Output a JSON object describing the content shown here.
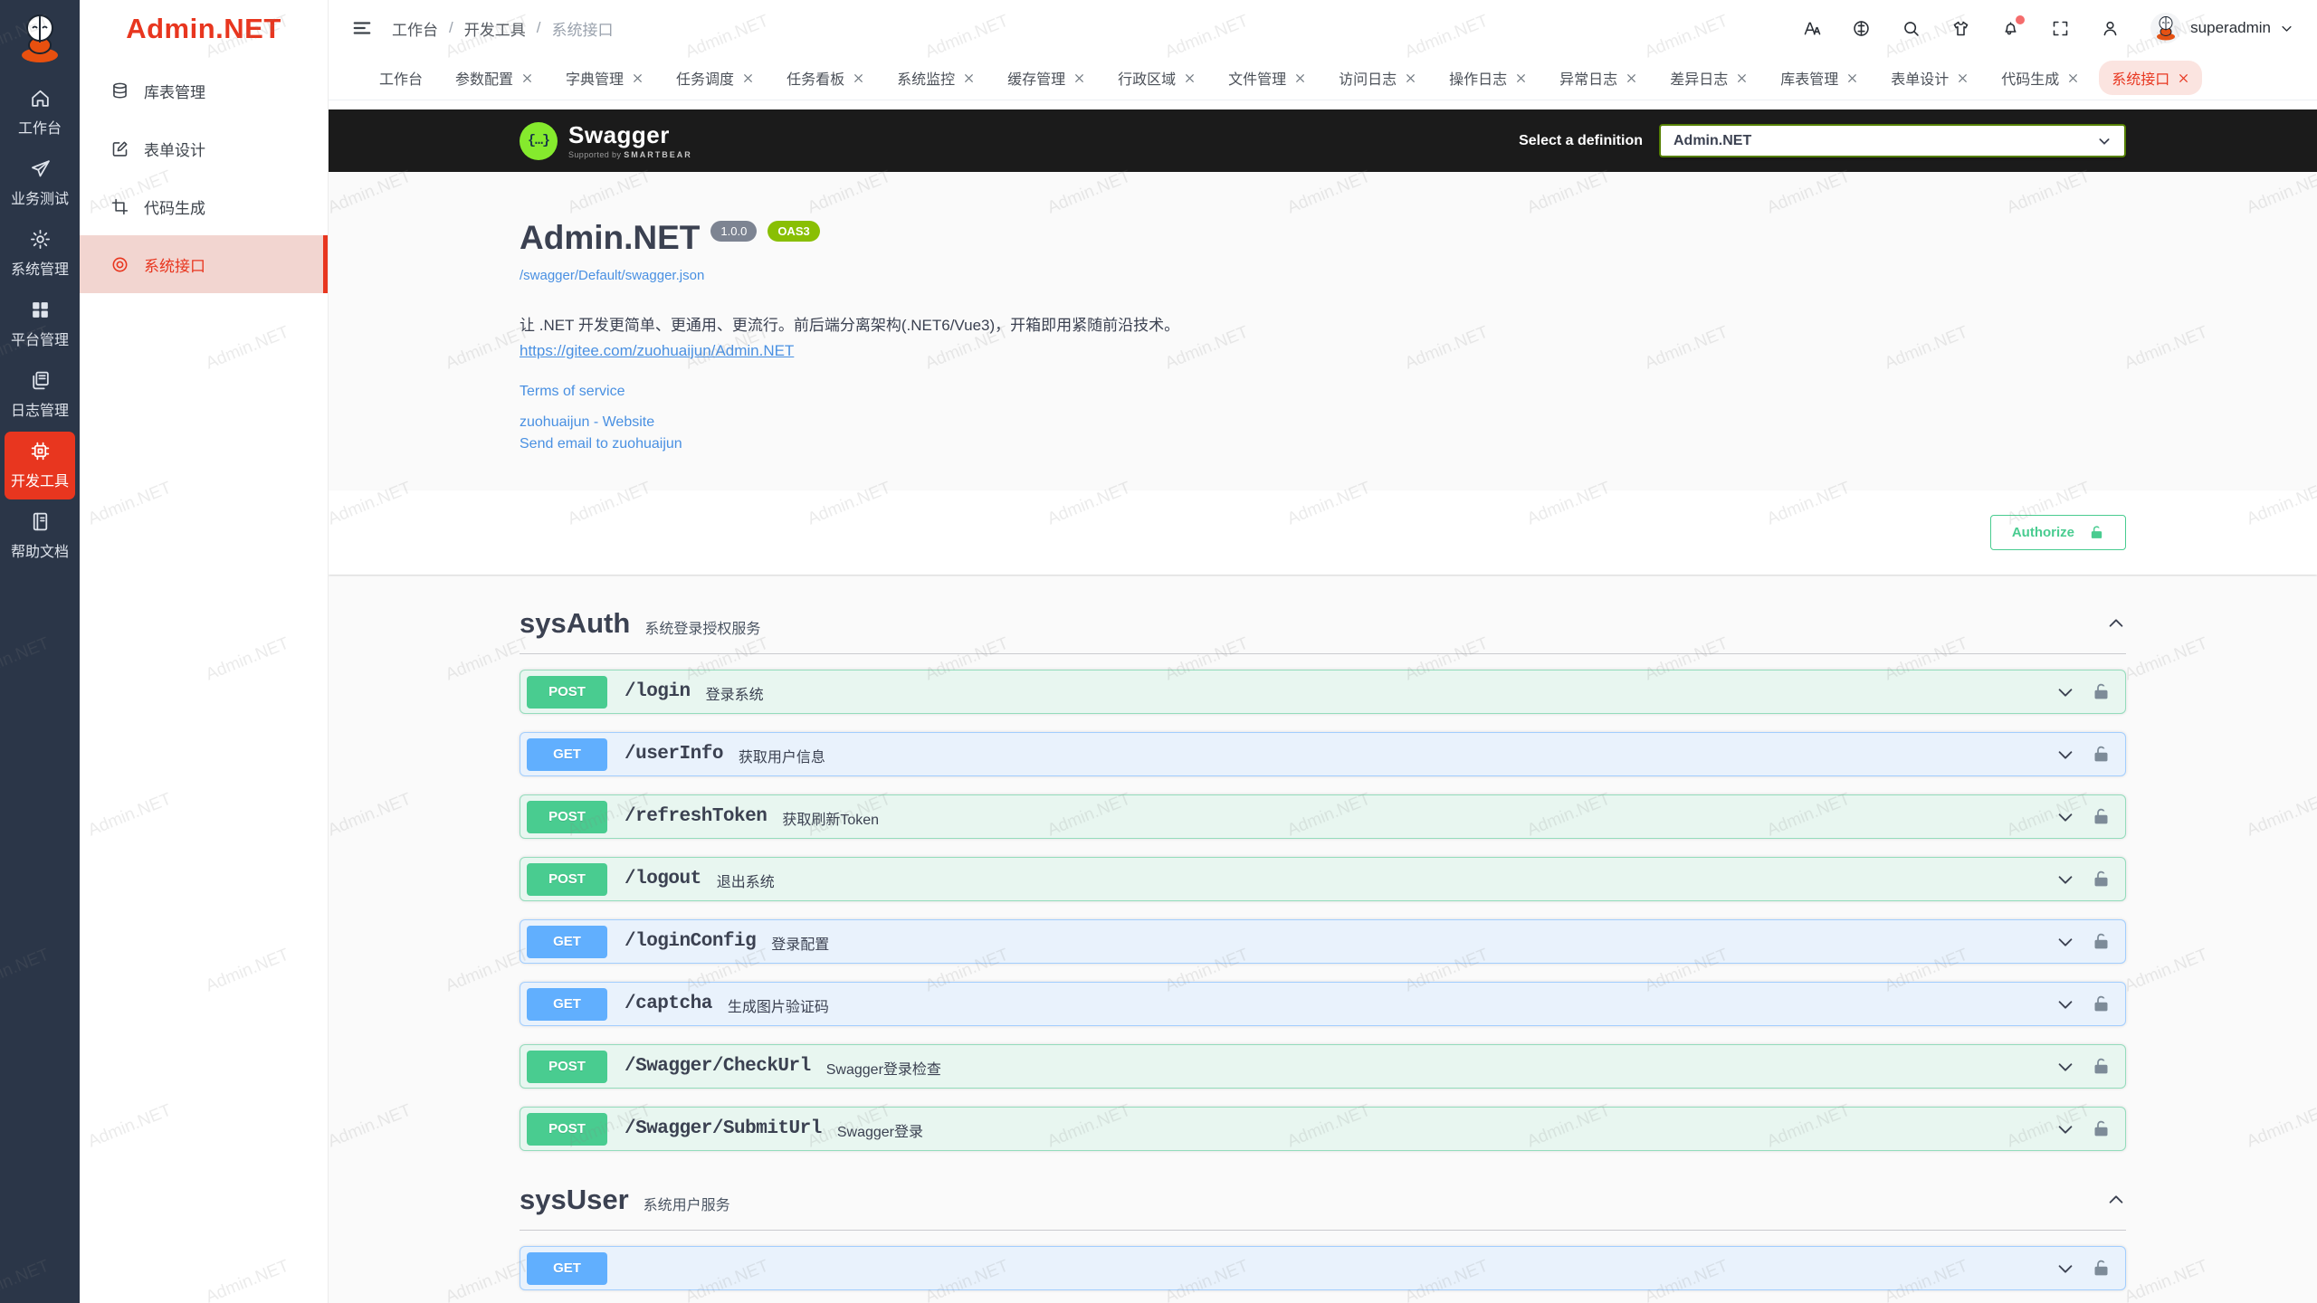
{
  "watermark": "Admin.NET",
  "rail": {
    "items": [
      {
        "icon": "home-icon",
        "label": "工作台",
        "active": false
      },
      {
        "icon": "send-icon",
        "label": "业务测试",
        "active": false
      },
      {
        "icon": "gear-icon",
        "label": "系统管理",
        "active": false
      },
      {
        "icon": "grid-icon",
        "label": "平台管理",
        "active": false
      },
      {
        "icon": "copy-docs-icon",
        "label": "日志管理",
        "active": false
      },
      {
        "icon": "chip-icon",
        "label": "开发工具",
        "active": true
      },
      {
        "icon": "book-icon",
        "label": "帮助文档",
        "active": false
      }
    ]
  },
  "sidebar": {
    "logo_text": "Admin.NET",
    "items": [
      {
        "icon": "database-icon",
        "label": "库表管理",
        "active": false
      },
      {
        "icon": "edit-icon",
        "label": "表单设计",
        "active": false
      },
      {
        "icon": "crop-icon",
        "label": "代码生成",
        "active": false
      },
      {
        "icon": "target-icon",
        "label": "系统接口",
        "active": true
      }
    ]
  },
  "breadcrumb": {
    "items": [
      "工作台",
      "开发工具",
      "系统接口"
    ],
    "separator": "/"
  },
  "header": {
    "icons": [
      {
        "name": "font-size-icon"
      },
      {
        "name": "language-icon"
      },
      {
        "name": "search-icon"
      },
      {
        "name": "theme-shirt-icon"
      },
      {
        "name": "bell-icon",
        "badge": true
      },
      {
        "name": "fullscreen-icon"
      },
      {
        "name": "person-icon"
      }
    ],
    "user": {
      "name": "superadmin"
    }
  },
  "tabs": [
    {
      "label": "工作台",
      "closable": false,
      "active": false
    },
    {
      "label": "参数配置",
      "closable": true,
      "active": false
    },
    {
      "label": "字典管理",
      "closable": true,
      "active": false
    },
    {
      "label": "任务调度",
      "closable": true,
      "active": false
    },
    {
      "label": "任务看板",
      "closable": true,
      "active": false
    },
    {
      "label": "系统监控",
      "closable": true,
      "active": false
    },
    {
      "label": "缓存管理",
      "closable": true,
      "active": false
    },
    {
      "label": "行政区域",
      "closable": true,
      "active": false
    },
    {
      "label": "文件管理",
      "closable": true,
      "active": false
    },
    {
      "label": "访问日志",
      "closable": true,
      "active": false
    },
    {
      "label": "操作日志",
      "closable": true,
      "active": false
    },
    {
      "label": "异常日志",
      "closable": true,
      "active": false
    },
    {
      "label": "差异日志",
      "closable": true,
      "active": false
    },
    {
      "label": "库表管理",
      "closable": true,
      "active": false
    },
    {
      "label": "表单设计",
      "closable": true,
      "active": false
    },
    {
      "label": "代码生成",
      "closable": true,
      "active": false
    },
    {
      "label": "系统接口",
      "closable": true,
      "active": true
    }
  ],
  "swagger": {
    "topbar": {
      "logo_glyph": "{…}",
      "logo_text": "Swagger",
      "supported_by": "Supported by",
      "smartbear": "SMARTBEAR",
      "select_label": "Select a definition",
      "selected_definition": "Admin.NET"
    },
    "info": {
      "title": "Admin.NET",
      "version": "1.0.0",
      "oas": "OAS3",
      "spec_url": "/swagger/Default/swagger.json",
      "description": "让 .NET 开发更简单、更通用、更流行。前后端分离架构(.NET6/Vue3)，开箱即用紧随前沿技术。",
      "gitee_link": "https://gitee.com/zuohuaijun/Admin.NET",
      "terms_label": "Terms of service",
      "contact_label": "zuohuaijun - Website",
      "email_label": "Send email to zuohuaijun"
    },
    "authorize_label": "Authorize",
    "sections": [
      {
        "name": "sysAuth",
        "description": "系统登录授权服务",
        "endpoints": [
          {
            "method": "POST",
            "path": "/login",
            "summary": "登录系统"
          },
          {
            "method": "GET",
            "path": "/userInfo",
            "summary": "获取用户信息"
          },
          {
            "method": "POST",
            "path": "/refreshToken",
            "summary": "获取刷新Token"
          },
          {
            "method": "POST",
            "path": "/logout",
            "summary": "退出系统"
          },
          {
            "method": "GET",
            "path": "/loginConfig",
            "summary": "登录配置"
          },
          {
            "method": "GET",
            "path": "/captcha",
            "summary": "生成图片验证码"
          },
          {
            "method": "POST",
            "path": "/Swagger/CheckUrl",
            "summary": "Swagger登录检查"
          },
          {
            "method": "POST",
            "path": "/Swagger/SubmitUrl",
            "summary": "Swagger登录"
          }
        ]
      },
      {
        "name": "sysUser",
        "description": "系统用户服务",
        "endpoints": [
          {
            "method": "GET",
            "path": "",
            "summary": "",
            "partial": true
          }
        ]
      }
    ],
    "colors": {
      "post": "#49cc90",
      "get": "#61affe",
      "accent": "#e8361f",
      "link": "#4990e2"
    }
  }
}
